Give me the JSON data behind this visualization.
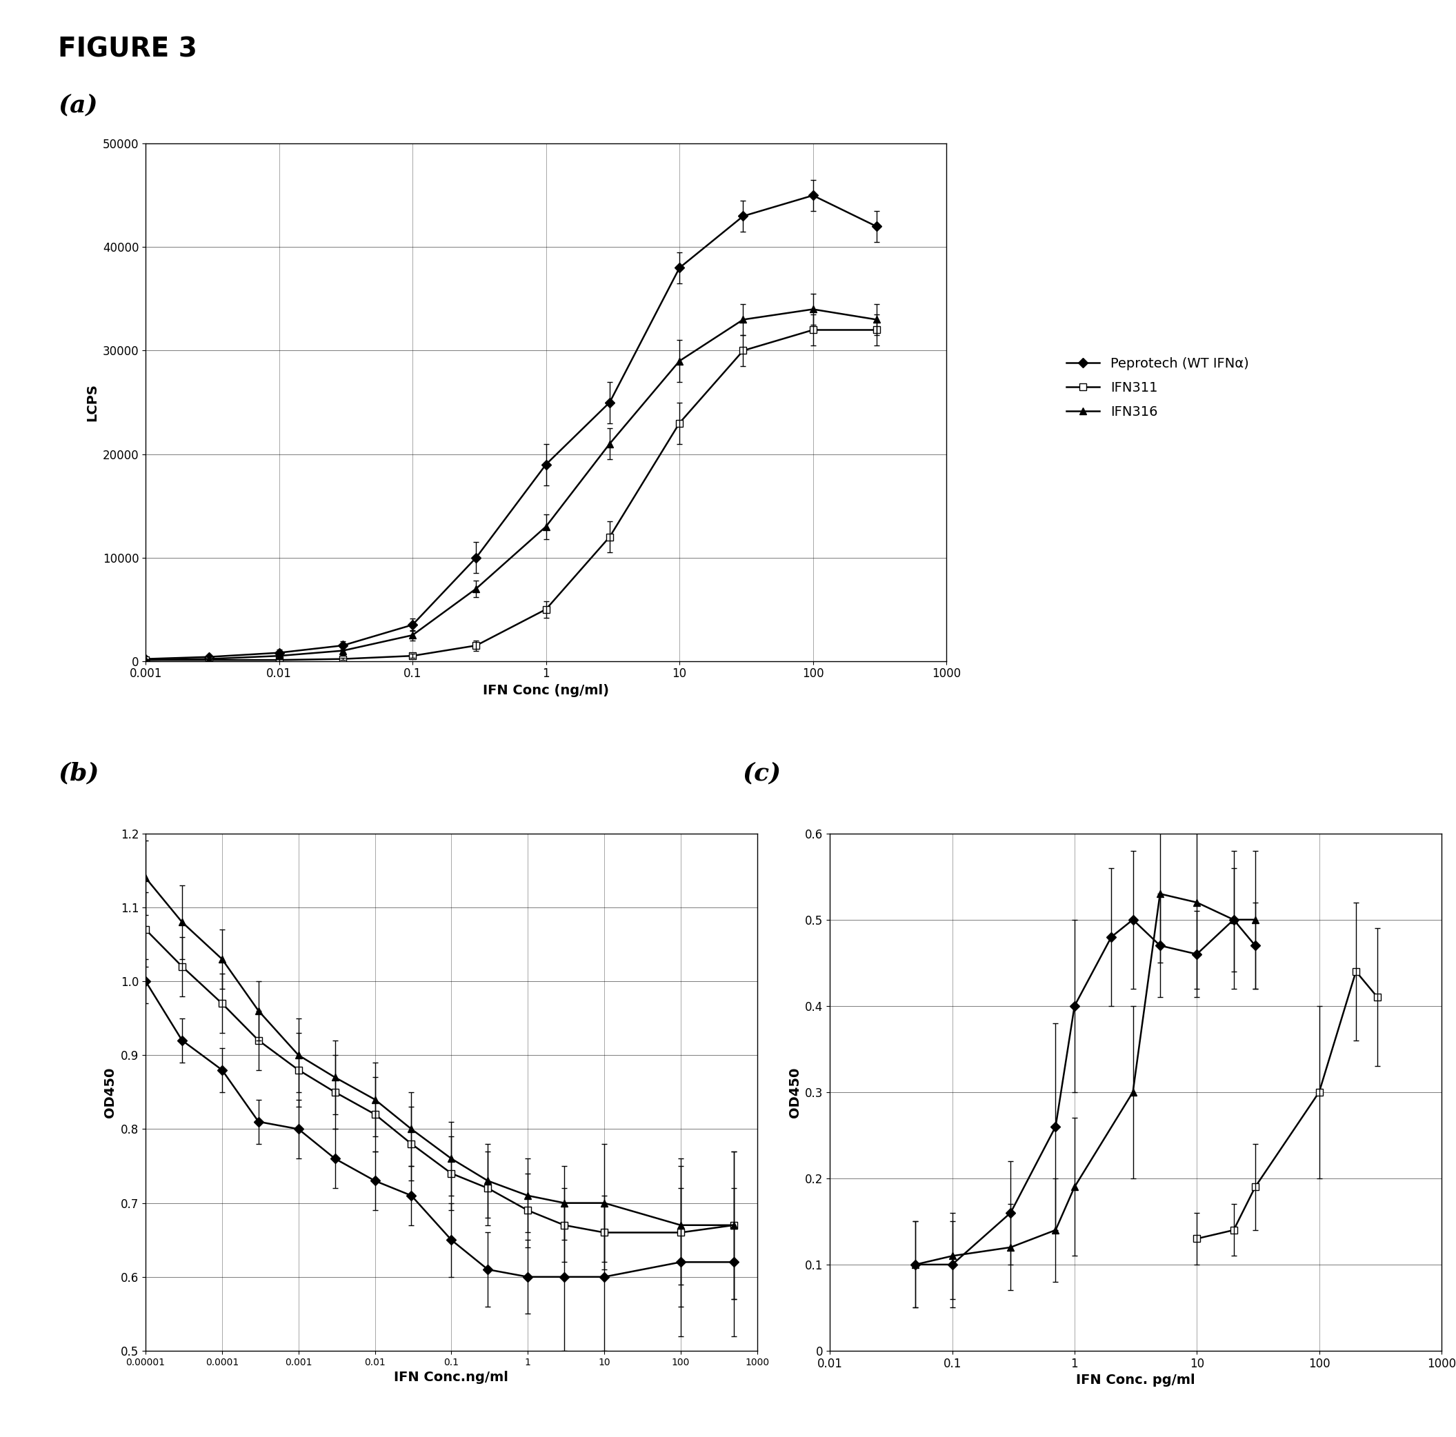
{
  "title": "FIGURE 3",
  "panel_labels": [
    "(a)",
    "(b)",
    "(c)"
  ],
  "legend_labels": [
    "Peprotech (WT IFNα)",
    "IFN311",
    "IFN316"
  ],
  "panel_a": {
    "xlabel": "IFN Conc (ng/ml)",
    "ylabel": "LCPS",
    "xlim": [
      0.001,
      1000
    ],
    "ylim": [
      0,
      50000
    ],
    "yticks": [
      0,
      10000,
      20000,
      30000,
      40000,
      50000
    ],
    "xticks": [
      0.001,
      0.01,
      0.1,
      1,
      10,
      100,
      1000
    ],
    "xticklabels": [
      "0.001",
      "0.01",
      "0.1",
      "1",
      "10",
      "100",
      "1000"
    ],
    "peprotech_x": [
      0.001,
      0.003,
      0.01,
      0.03,
      0.1,
      0.3,
      1,
      3,
      10,
      30,
      100,
      300
    ],
    "peprotech_y": [
      200,
      400,
      800,
      1500,
      3500,
      10000,
      19000,
      25000,
      38000,
      43000,
      45000,
      42000
    ],
    "peprotech_err": [
      100,
      200,
      300,
      400,
      600,
      1500,
      2000,
      2000,
      1500,
      1500,
      1500,
      1500
    ],
    "ifn311_x": [
      0.001,
      0.003,
      0.01,
      0.03,
      0.1,
      0.3,
      1,
      3,
      10,
      30,
      100,
      300
    ],
    "ifn311_y": [
      100,
      100,
      100,
      200,
      500,
      1500,
      5000,
      12000,
      23000,
      30000,
      32000,
      32000
    ],
    "ifn311_err": [
      50,
      50,
      100,
      100,
      200,
      500,
      800,
      1500,
      2000,
      1500,
      1500,
      1500
    ],
    "ifn316_x": [
      0.001,
      0.003,
      0.01,
      0.03,
      0.1,
      0.3,
      1,
      3,
      10,
      30,
      100,
      300
    ],
    "ifn316_y": [
      100,
      200,
      500,
      1000,
      2500,
      7000,
      13000,
      21000,
      29000,
      33000,
      34000,
      33000
    ],
    "ifn316_err": [
      100,
      200,
      300,
      400,
      500,
      800,
      1200,
      1500,
      2000,
      1500,
      1500,
      1500
    ]
  },
  "panel_b": {
    "xlabel": "IFN Conc.ng/ml",
    "ylabel": "OD450",
    "xlim": [
      1e-05,
      1000
    ],
    "ylim": [
      0.5,
      1.2
    ],
    "yticks": [
      0.5,
      0.6,
      0.7,
      0.8,
      0.9,
      1.0,
      1.1,
      1.2
    ],
    "xticks": [
      1e-05,
      0.0001,
      0.001,
      0.01,
      0.1,
      1,
      10,
      100,
      1000
    ],
    "xticklabels": [
      "0.00001",
      "0.0001",
      "0.001",
      "0.01",
      "0.1",
      "1",
      "10",
      "100",
      "1000"
    ],
    "peprotech_x": [
      1e-05,
      3e-05,
      0.0001,
      0.0003,
      0.001,
      0.003,
      0.01,
      0.03,
      0.1,
      0.3,
      1,
      3,
      10,
      100,
      500
    ],
    "peprotech_y": [
      1.0,
      0.92,
      0.88,
      0.81,
      0.8,
      0.76,
      0.73,
      0.71,
      0.65,
      0.61,
      0.6,
      0.6,
      0.6,
      0.62,
      0.62
    ],
    "peprotech_err": [
      0.03,
      0.03,
      0.03,
      0.03,
      0.04,
      0.04,
      0.04,
      0.04,
      0.05,
      0.05,
      0.05,
      0.1,
      0.1,
      0.1,
      0.1
    ],
    "ifn311_x": [
      1e-05,
      3e-05,
      0.0001,
      0.0003,
      0.001,
      0.003,
      0.01,
      0.03,
      0.1,
      0.3,
      1,
      3,
      10,
      100,
      500
    ],
    "ifn311_y": [
      1.07,
      1.02,
      0.97,
      0.92,
      0.88,
      0.85,
      0.82,
      0.78,
      0.74,
      0.72,
      0.69,
      0.67,
      0.66,
      0.66,
      0.67
    ],
    "ifn311_err": [
      0.05,
      0.04,
      0.04,
      0.04,
      0.05,
      0.05,
      0.05,
      0.05,
      0.05,
      0.05,
      0.05,
      0.05,
      0.05,
      0.1,
      0.1
    ],
    "ifn316_x": [
      1e-05,
      3e-05,
      0.0001,
      0.0003,
      0.001,
      0.003,
      0.01,
      0.03,
      0.1,
      0.3,
      1,
      3,
      10,
      100,
      500
    ],
    "ifn316_y": [
      1.14,
      1.08,
      1.03,
      0.96,
      0.9,
      0.87,
      0.84,
      0.8,
      0.76,
      0.73,
      0.71,
      0.7,
      0.7,
      0.67,
      0.67
    ],
    "ifn316_err": [
      0.05,
      0.05,
      0.04,
      0.04,
      0.05,
      0.05,
      0.05,
      0.05,
      0.05,
      0.05,
      0.05,
      0.05,
      0.08,
      0.08,
      0.1
    ]
  },
  "panel_c": {
    "xlabel": "IFN Conc. pg/ml",
    "ylabel": "OD450",
    "xlim": [
      0.01,
      1000
    ],
    "ylim": [
      0,
      0.6
    ],
    "yticks": [
      0,
      0.1,
      0.2,
      0.3,
      0.4,
      0.5,
      0.6
    ],
    "xticks": [
      0.01,
      0.1,
      1,
      10,
      100,
      1000
    ],
    "xticklabels": [
      "0.01",
      "0.1",
      "1",
      "10",
      "100",
      "1000"
    ],
    "peprotech_x": [
      0.05,
      0.1,
      0.3,
      0.7,
      1,
      2,
      3,
      5,
      10,
      20,
      30
    ],
    "peprotech_y": [
      0.1,
      0.1,
      0.16,
      0.26,
      0.4,
      0.48,
      0.5,
      0.47,
      0.46,
      0.5,
      0.47
    ],
    "peprotech_err": [
      0.05,
      0.05,
      0.06,
      0.12,
      0.1,
      0.08,
      0.08,
      0.06,
      0.05,
      0.06,
      0.05
    ],
    "ifn311_x": [
      10,
      20,
      30,
      100,
      200,
      300
    ],
    "ifn311_y": [
      0.13,
      0.14,
      0.19,
      0.3,
      0.44,
      0.41
    ],
    "ifn311_err": [
      0.03,
      0.03,
      0.05,
      0.1,
      0.08,
      0.08
    ],
    "ifn316_x": [
      0.05,
      0.1,
      0.3,
      0.7,
      1,
      3,
      5,
      10,
      20,
      30
    ],
    "ifn316_y": [
      0.1,
      0.11,
      0.12,
      0.14,
      0.19,
      0.3,
      0.53,
      0.52,
      0.5,
      0.5
    ],
    "ifn316_err": [
      0.05,
      0.05,
      0.05,
      0.06,
      0.08,
      0.1,
      0.08,
      0.1,
      0.08,
      0.08
    ]
  }
}
